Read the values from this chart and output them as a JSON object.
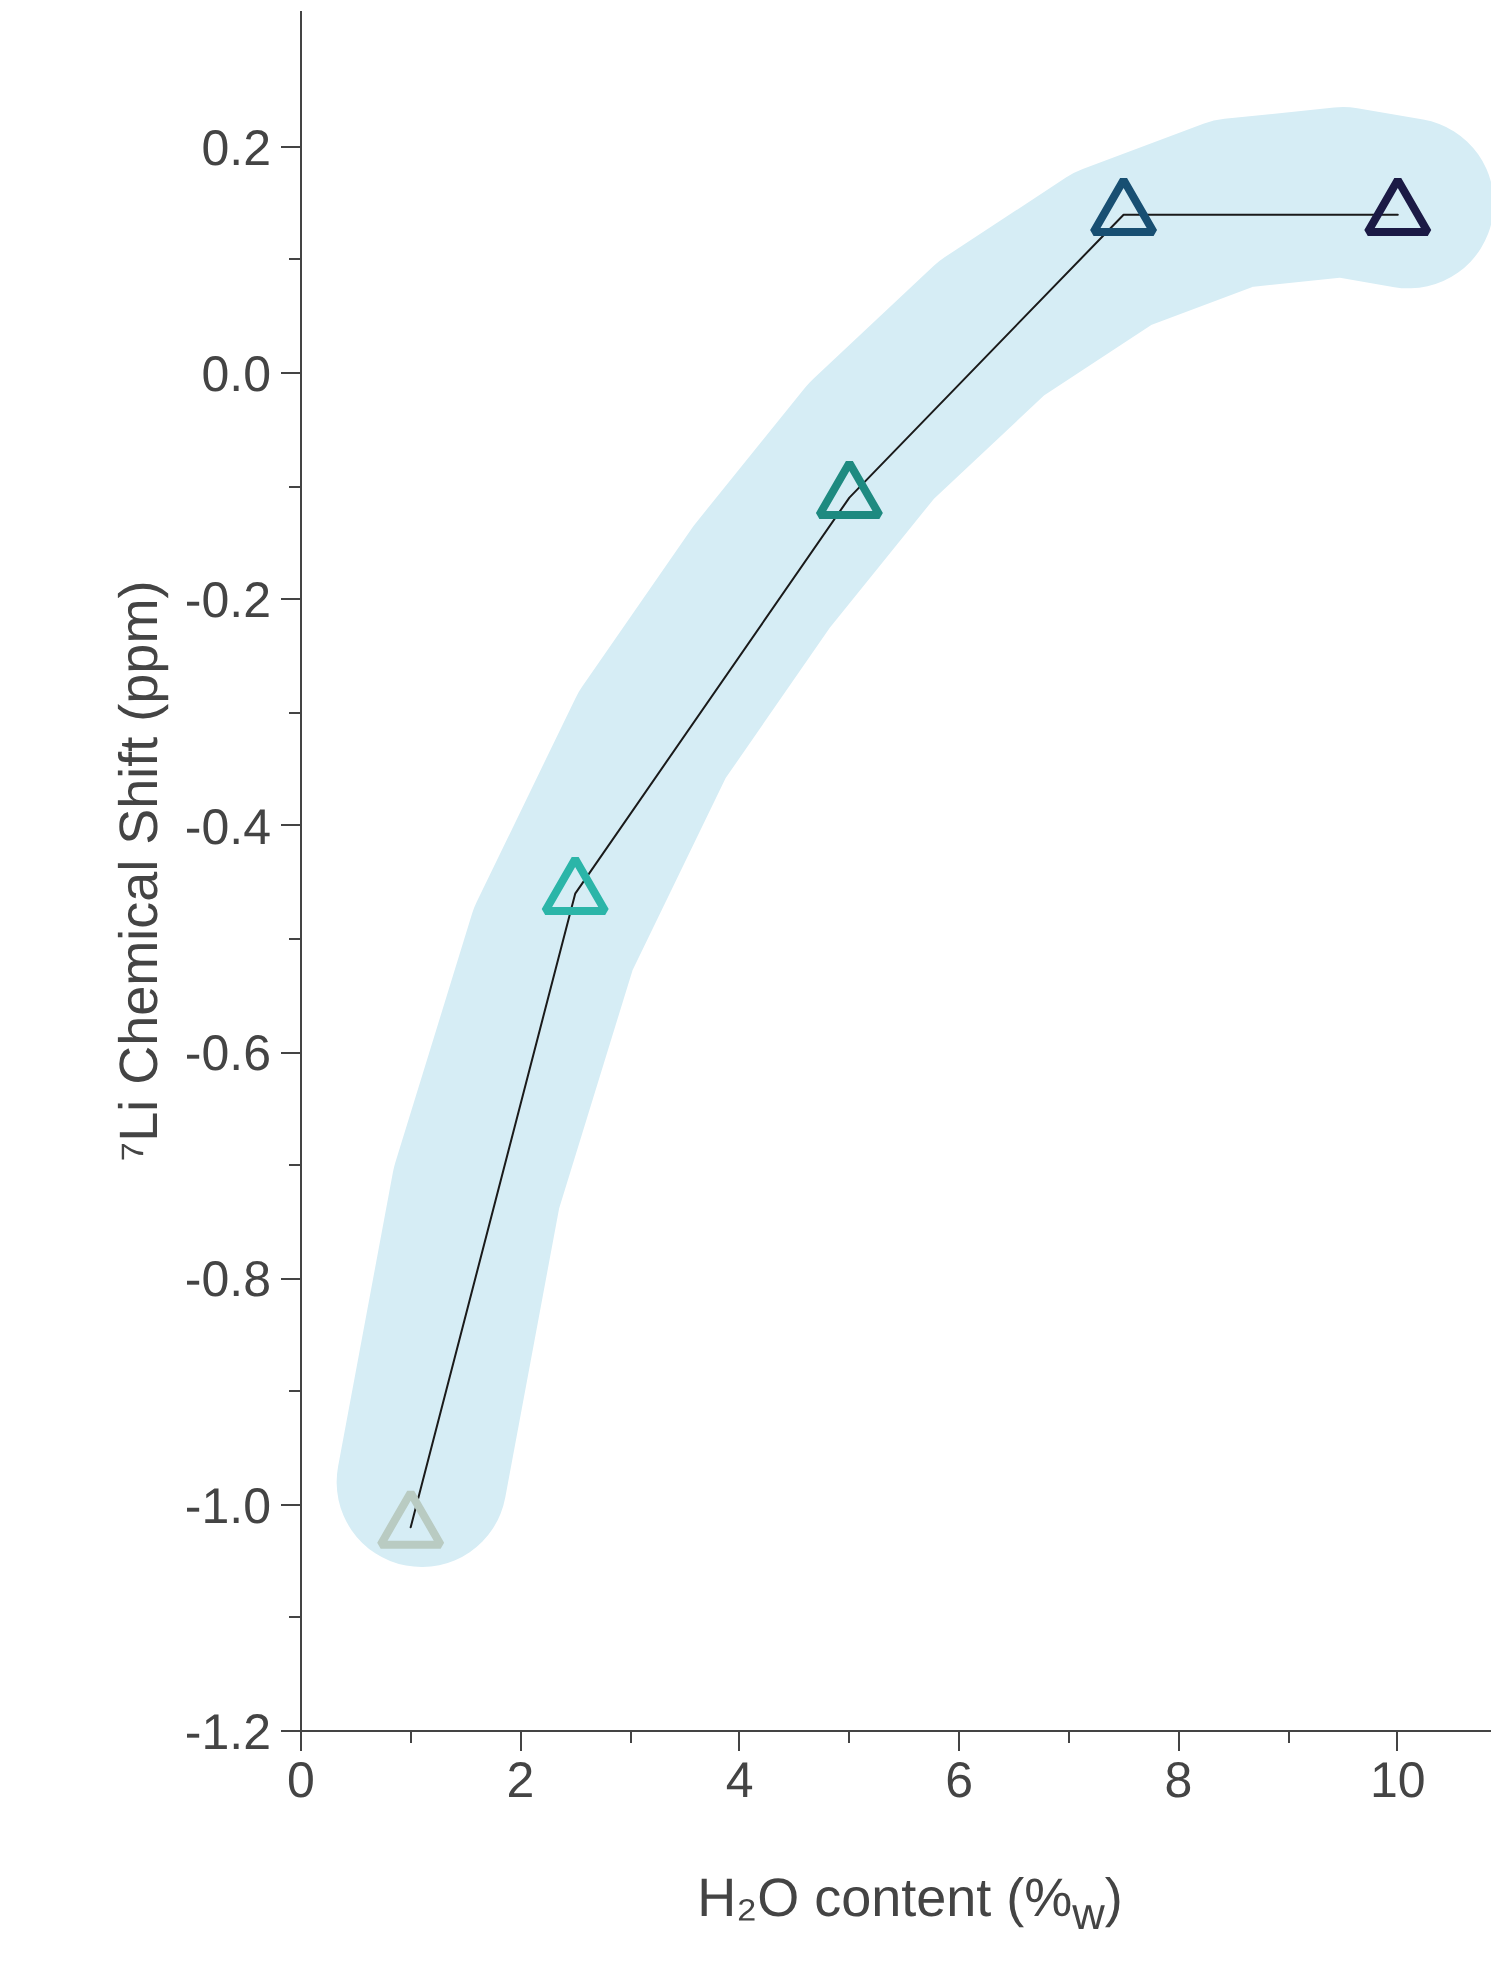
{
  "chart_data": {
    "type": "line",
    "xlabel": "H₂O content (%$_{w}$)",
    "ylabel": "⁷Li Chemical Shift (ppm)",
    "xlim": [
      0,
      10.85
    ],
    "ylim": [
      -1.2,
      0.32
    ],
    "xticks": [
      0,
      {
        "value": 1,
        "label": null
      },
      2,
      {
        "value": 3,
        "label": null
      },
      4,
      {
        "value": 5,
        "label": null
      },
      6,
      {
        "value": 7,
        "label": null
      },
      8,
      {
        "value": 9,
        "label": null
      },
      10
    ],
    "yticks": [
      {
        "value": -1.2,
        "label": "-1.2"
      },
      {
        "value": -1.1,
        "label": null
      },
      {
        "value": -1.0,
        "label": "-1.0"
      },
      {
        "value": -0.9,
        "label": null
      },
      {
        "value": -0.8,
        "label": "-0.8"
      },
      {
        "value": -0.7,
        "label": null
      },
      {
        "value": -0.6,
        "label": "-0.6"
      },
      {
        "value": -0.5,
        "label": null
      },
      {
        "value": -0.4,
        "label": "-0.4"
      },
      {
        "value": -0.3,
        "label": null
      },
      {
        "value": -0.2,
        "label": "-0.2"
      },
      {
        "value": -0.1,
        "label": null
      },
      {
        "value": 0,
        "label": "0.0"
      },
      {
        "value": 0.1,
        "label": null
      },
      {
        "value": 0.2,
        "label": "0.2"
      }
    ],
    "grid": false,
    "series": [
      {
        "type": "line",
        "marker": "none",
        "color": "#d6edf5",
        "x": [
          1.1,
          1.6,
          2.3,
          3.2,
          4.2,
          5.2,
          6.3,
          7.4,
          8.5,
          9.5,
          10.1
        ],
        "values": [
          -0.98,
          -0.72,
          -0.5,
          -0.32,
          -0.18,
          -0.06,
          0.04,
          0.11,
          0.15,
          0.16,
          0.15
        ]
      },
      {
        "marker": "triangle",
        "color": "#1a1a1a",
        "colors": [
          "#b9cbc2",
          "#2bb5a8",
          "#1e8a80",
          "#184f72",
          "#1b1a45"
        ],
        "x": [
          1,
          2.5,
          5,
          7.5,
          10
        ],
        "values": [
          -1.02,
          -0.46,
          -0.11,
          0.14,
          0.14
        ]
      }
    ]
  }
}
